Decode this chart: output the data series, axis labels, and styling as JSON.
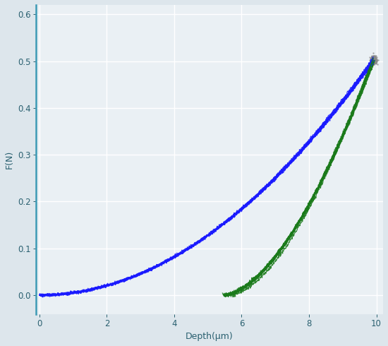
{
  "title": "",
  "xlabel": "Depth(μm)",
  "ylabel": "F(N)",
  "xlim": [
    -0.1,
    10.2
  ],
  "ylim": [
    -0.04,
    0.62
  ],
  "yticks": [
    0.0,
    0.1,
    0.2,
    0.3,
    0.4,
    0.5,
    0.6
  ],
  "xticks": [
    0,
    2,
    4,
    6,
    8,
    10
  ],
  "background_color": "#dde6ec",
  "plot_bg_color": "#eaf0f4",
  "grid_color": "#ffffff",
  "load_color": "#1a1aff",
  "unload_color": "#1a7a1a",
  "hold_color": "#888888",
  "n_indents": 10,
  "max_depth": 9.9,
  "max_force": 0.502,
  "noise_load": 0.0015,
  "noise_unload": 0.0018,
  "line_alpha": 0.9,
  "linewidth": 0.8,
  "load_exponent": 2.0,
  "unload_exponent": 1.7,
  "residual_depth": 5.55
}
